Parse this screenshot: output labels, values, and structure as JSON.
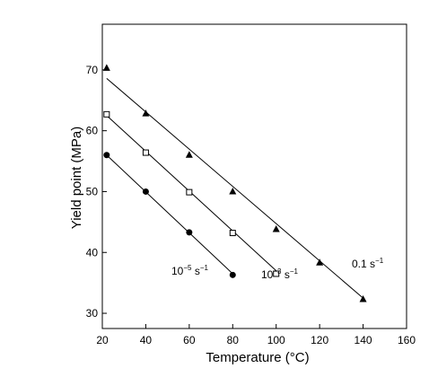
{
  "chart_data": {
    "type": "scatter",
    "xlabel": "Temperature (°C)",
    "ylabel": "Yield point (MPa)",
    "xlim": [
      20,
      160
    ],
    "ylim": [
      27.5,
      77.5
    ],
    "xticks": [
      20,
      40,
      60,
      80,
      100,
      120,
      140,
      160
    ],
    "yticks": [
      30,
      40,
      50,
      60,
      70
    ],
    "grid": false,
    "legend": "none",
    "series": [
      {
        "label_base": "0.1 s",
        "label_exp": "−1",
        "marker": "triangle",
        "x": [
          22,
          40,
          60,
          80,
          100,
          120,
          140
        ],
        "y": [
          70.3,
          62.8,
          56.0,
          50.0,
          43.8,
          38.3,
          32.3
        ],
        "fit": [
          [
            22,
            68.6
          ],
          [
            140,
            32.5
          ]
        ]
      },
      {
        "label_base": "10",
        "label_exp": "−3",
        "label_unit": " s",
        "label_unit_exp": "−1",
        "marker": "square",
        "x": [
          22,
          40,
          60,
          80,
          100
        ],
        "y": [
          62.7,
          56.4,
          49.9,
          43.2,
          36.5
        ],
        "fit": [
          [
            22,
            62.5
          ],
          [
            100,
            37.0
          ]
        ]
      },
      {
        "label_base": "10",
        "label_exp": "−5",
        "label_unit": " s",
        "label_unit_exp": "−1",
        "marker": "circle",
        "x": [
          22,
          40,
          60,
          80
        ],
        "y": [
          56.0,
          50.0,
          43.3,
          36.3
        ],
        "fit": [
          [
            22,
            56.0
          ],
          [
            80,
            36.5
          ]
        ]
      }
    ]
  }
}
